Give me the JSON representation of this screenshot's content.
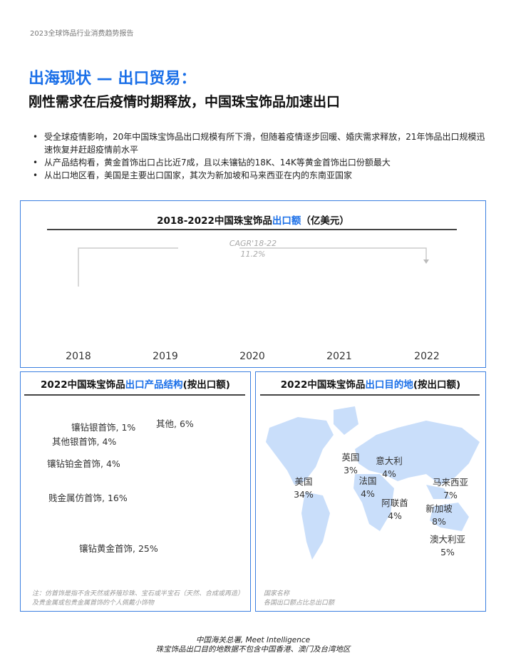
{
  "header": "2023全球饰品行业消费趋势报告",
  "title": "出海现状 — 出口贸易：",
  "subtitle": "刚性需求在后疫情时期释放，中国珠宝饰品加速出口",
  "bullets": [
    "受全球疫情影响，20年中国珠宝饰品出口规模有所下滑，但随着疫情逐步回暖、婚庆需求释放，21年饰品出口规模迅速恢复并赶超疫情前水平",
    "从产品结构看，黄金首饰出口占比近7成，且以未镶钻的18K、14K等黄金首饰出口份额最大",
    "从出口地区看，美国是主要出口国家，其次为新加坡和马来西亚在内的东南亚国家"
  ],
  "colors": {
    "accent": "#1a6fe8",
    "map": "#c9defa",
    "border": "#3b7fe0"
  },
  "chart_data": [
    {
      "type": "bar",
      "title_prefix": "2018-2022中国珠宝饰品",
      "title_highlight": "出口额",
      "title_suffix": "（亿美元）",
      "categories": [
        "2018",
        "2019",
        "2020",
        "2021",
        "2022"
      ],
      "annotation": {
        "line1": "CAGR'18-22",
        "line2": "11.2%"
      }
    },
    {
      "type": "pie",
      "title_prefix": "2022中国珠宝饰品",
      "title_highlight": "出口产品结构",
      "title_suffix": "(按出口额)",
      "labels": [
        "镶钻银首饰, 1%",
        "其他, 6%",
        "其他银首饰, 4%",
        "镶钻铂金首饰, 4%",
        "贱金属仿首饰, 16%",
        "镶钻黄金首饰, 25%"
      ],
      "values": [
        1,
        6,
        4,
        4,
        16,
        25
      ],
      "note": "注：仿首饰是指不含天然或养殖珍珠、宝石或半宝石（天然、合成或再造）及贵金属或包贵金属首饰的个人佩戴小饰物"
    }
  ],
  "map": {
    "title_prefix": "2022中国珠宝饰品",
    "title_highlight": "出口目的地",
    "title_suffix": "(按出口额)",
    "countries": [
      {
        "name": "美国",
        "pct": "34%"
      },
      {
        "name": "英国",
        "pct": "3%"
      },
      {
        "name": "意大利",
        "pct": "4%"
      },
      {
        "name": "法国",
        "pct": "4%"
      },
      {
        "name": "阿联酋",
        "pct": "4%"
      },
      {
        "name": "马来西亚",
        "pct": "7%"
      },
      {
        "name": "新加坡",
        "pct": "8%"
      },
      {
        "name": "澳大利亚",
        "pct": "5%"
      }
    ],
    "legend1": "国家名称",
    "legend2": "各国出口额占比总出口额"
  },
  "source": {
    "line1": "中国海关总署, Meet Intelligence",
    "line2": "珠宝饰品出口目的地数据不包含中国香港、澳门及台湾地区"
  }
}
